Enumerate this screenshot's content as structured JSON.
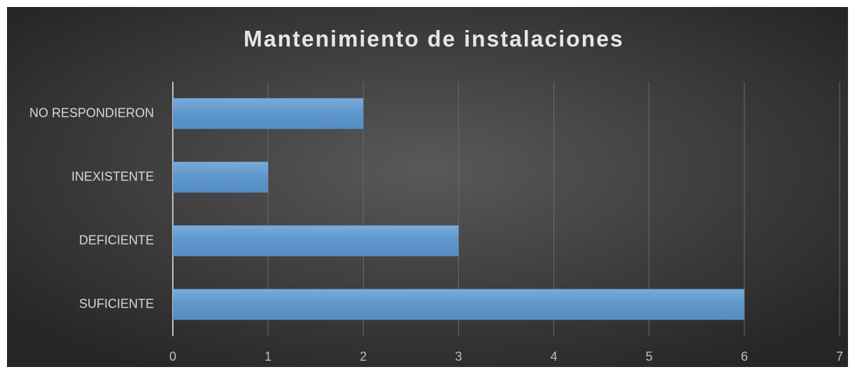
{
  "chart_data": {
    "type": "bar",
    "orientation": "horizontal",
    "title": "Mantenimiento de instalaciones",
    "categories": [
      "NO RESPONDIERON",
      "INEXISTENTE",
      "DEFICIENTE",
      "SUFICIENTE"
    ],
    "values": [
      2,
      1,
      3,
      6
    ],
    "color": "#5b9bd5",
    "xlim": [
      0,
      7
    ],
    "xticks": [
      0,
      1,
      2,
      3,
      4,
      5,
      6,
      7
    ],
    "grid": true
  }
}
